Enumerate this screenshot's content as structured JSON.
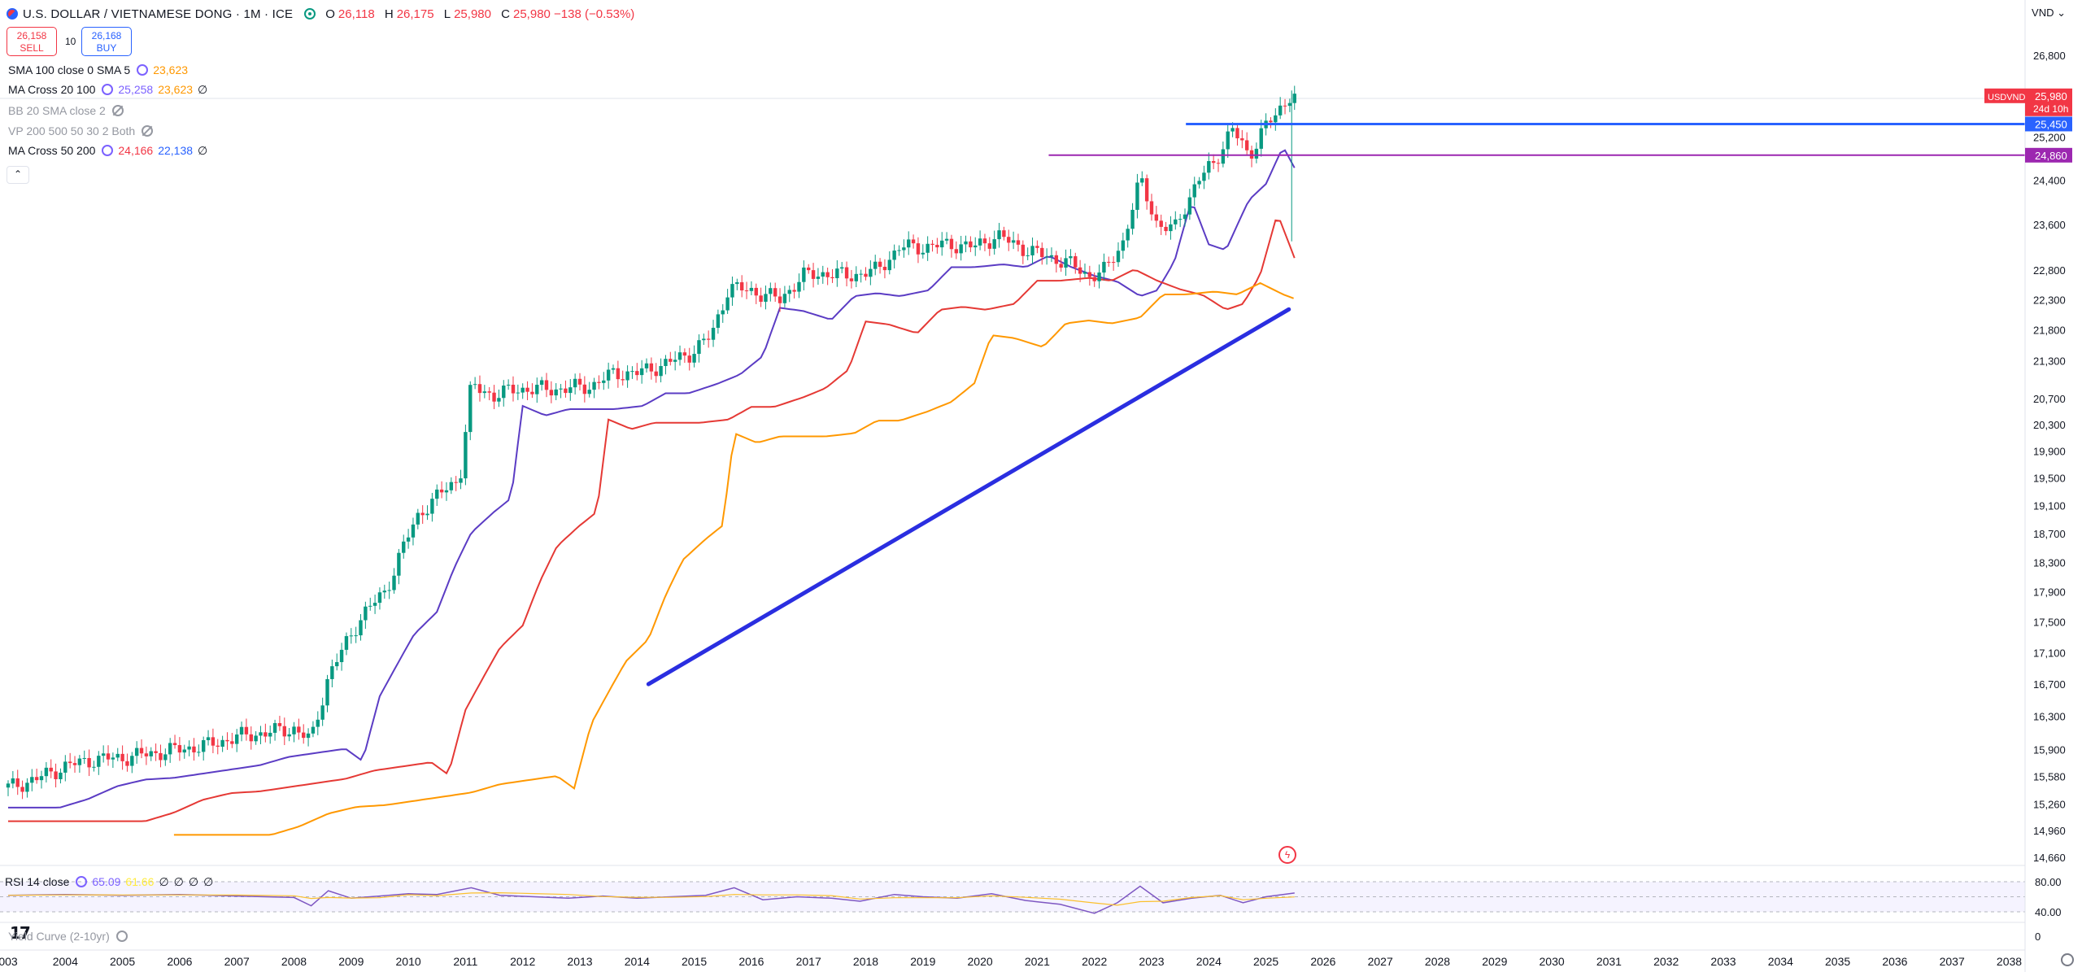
{
  "header": {
    "title": "U.S. DOLLAR / VIETNAMESE DONG · 1M · ICE",
    "ohlc": [
      {
        "label": "O",
        "value": "26,118"
      },
      {
        "label": "H",
        "value": "26,175"
      },
      {
        "label": "L",
        "value": "25,980"
      },
      {
        "label": "C",
        "value": "25,980 −138 (−0.53%)"
      }
    ],
    "currency": "VND ⌄"
  },
  "trade": {
    "sell_price": "26,158",
    "sell_label": "SELL",
    "spread": "10",
    "buy_price": "26,168",
    "buy_label": "BUY"
  },
  "indicators": [
    {
      "name": "SMA 100 close 0 SMA 5",
      "values": [
        "23,623"
      ],
      "colors": [
        "#ff9800"
      ],
      "visible": true
    },
    {
      "name": "MA Cross 20 100",
      "values": [
        "25,258",
        "23,623",
        "∅"
      ],
      "colors": [
        "#7b61ff",
        "#ff9800",
        "#131722"
      ],
      "visible": true
    },
    {
      "name": "BB 20 SMA close 2",
      "values": [],
      "colors": [],
      "visible": false
    },
    {
      "name": "VP 200 500 50 30 2 Both",
      "values": [],
      "colors": [],
      "visible": false
    },
    {
      "name": "MA Cross 50 200",
      "values": [
        "24,166",
        "22,138",
        "∅"
      ],
      "colors": [
        "#f23645",
        "#2962ff",
        "#131722"
      ],
      "visible": true
    }
  ],
  "collapse_label": "⌃",
  "rsi": {
    "name": "RSI 14 close",
    "values": [
      "65.09",
      "61.66",
      "∅",
      "∅",
      "∅",
      "∅"
    ],
    "ticks": [
      "80.00",
      "40.00"
    ]
  },
  "yield_curve": {
    "name": "Yield Curve (2-10yr)",
    "tick": "0"
  },
  "logo_text": "17",
  "chart_data": {
    "type": "candlestick",
    "symbol": "USDVND",
    "timeframe": "1M",
    "price_axis": {
      "ticks": [
        "26,800",
        "26,000",
        "25,200",
        "24,400",
        "23,600",
        "22,800",
        "22,300",
        "21,800",
        "21,300",
        "20,700",
        "20,300",
        "19,900",
        "19,500",
        "19,100",
        "18,700",
        "18,300",
        "17,900",
        "17,500",
        "17,100",
        "16,700",
        "16,300",
        "15,900",
        "15,580",
        "15,260",
        "14,960",
        "14,660"
      ],
      "scale": "log"
    },
    "time_axis": {
      "labels": [
        "003",
        "2004",
        "2005",
        "2006",
        "2007",
        "2008",
        "2009",
        "2010",
        "2011",
        "2012",
        "2013",
        "2014",
        "2015",
        "2016",
        "2017",
        "2018",
        "2019",
        "2020",
        "2021",
        "2022",
        "2023",
        "2024",
        "2025",
        "2026",
        "2027",
        "2028",
        "2029",
        "2030",
        "2031",
        "2032",
        "2033",
        "2034",
        "2035",
        "2036",
        "2037",
        "2038"
      ]
    },
    "price_labels": [
      {
        "text": "USDVND",
        "value": "25,980",
        "extra": "24d 10h",
        "color": "#f23645"
      },
      {
        "text": "",
        "value": "25,450",
        "color": "#2962ff"
      },
      {
        "text": "",
        "value": "24,860",
        "color": "#9c27b0"
      }
    ],
    "horizontal_lines": [
      {
        "price": 25450,
        "from": 2023.6,
        "color": "#2962ff"
      },
      {
        "price": 24860,
        "from": 2021.2,
        "color": "#9c27b0"
      }
    ],
    "trend_line": {
      "from": [
        2014.2,
        16700
      ],
      "to": [
        2025.4,
        22138
      ],
      "color": "#2a2ee0"
    },
    "closes": [
      [
        2003.0,
        15450
      ],
      [
        2003.5,
        15550
      ],
      [
        2004.0,
        15700
      ],
      [
        2004.5,
        15780
      ],
      [
        2005.0,
        15800
      ],
      [
        2005.5,
        15850
      ],
      [
        2006.0,
        15900
      ],
      [
        2006.5,
        15950
      ],
      [
        2007.0,
        16050
      ],
      [
        2007.5,
        16100
      ],
      [
        2008.0,
        16150
      ],
      [
        2008.3,
        16000
      ],
      [
        2008.6,
        16800
      ],
      [
        2008.9,
        17200
      ],
      [
        2009.2,
        17600
      ],
      [
        2009.6,
        17900
      ],
      [
        2009.9,
        18500
      ],
      [
        2010.2,
        19000
      ],
      [
        2010.6,
        19300
      ],
      [
        2010.9,
        19500
      ],
      [
        2011.1,
        20900
      ],
      [
        2011.5,
        20750
      ],
      [
        2011.9,
        20850
      ],
      [
        2012.3,
        20850
      ],
      [
        2012.7,
        20850
      ],
      [
        2013.2,
        20900
      ],
      [
        2013.6,
        21100
      ],
      [
        2014.0,
        21100
      ],
      [
        2014.5,
        21250
      ],
      [
        2014.9,
        21400
      ],
      [
        2015.3,
        21700
      ],
      [
        2015.6,
        22500
      ],
      [
        2016.0,
        22450
      ],
      [
        2016.5,
        22300
      ],
      [
        2016.9,
        22700
      ],
      [
        2017.3,
        22750
      ],
      [
        2017.7,
        22700
      ],
      [
        2018.2,
        22800
      ],
      [
        2018.6,
        23200
      ],
      [
        2019.0,
        23200
      ],
      [
        2019.5,
        23250
      ],
      [
        2019.9,
        23200
      ],
      [
        2020.3,
        23400
      ],
      [
        2020.7,
        23200
      ],
      [
        2021.1,
        23050
      ],
      [
        2021.5,
        22950
      ],
      [
        2021.9,
        22700
      ],
      [
        2022.2,
        22800
      ],
      [
        2022.5,
        23300
      ],
      [
        2022.8,
        24400
      ],
      [
        2023.1,
        23600
      ],
      [
        2023.4,
        23500
      ],
      [
        2023.8,
        24400
      ],
      [
        2024.1,
        24700
      ],
      [
        2024.4,
        25400
      ],
      [
        2024.7,
        24800
      ],
      [
        2024.95,
        25400
      ],
      [
        2025.2,
        25600
      ],
      [
        2025.45,
        26100
      ],
      [
        2025.55,
        25980
      ]
    ],
    "rsi_series": [
      [
        2003.0,
        62
      ],
      [
        2004.0,
        63
      ],
      [
        2005.0,
        62
      ],
      [
        2006.0,
        63
      ],
      [
        2007.0,
        61
      ],
      [
        2008.0,
        59
      ],
      [
        2008.3,
        48
      ],
      [
        2008.6,
        68
      ],
      [
        2009.0,
        58
      ],
      [
        2009.5,
        61
      ],
      [
        2010.0,
        64
      ],
      [
        2010.5,
        63
      ],
      [
        2011.1,
        72
      ],
      [
        2011.6,
        62
      ],
      [
        2012.2,
        60
      ],
      [
        2012.8,
        58
      ],
      [
        2013.4,
        61
      ],
      [
        2014.0,
        58
      ],
      [
        2014.6,
        60
      ],
      [
        2015.2,
        62
      ],
      [
        2015.7,
        72
      ],
      [
        2016.2,
        56
      ],
      [
        2016.8,
        60
      ],
      [
        2017.4,
        58
      ],
      [
        2017.9,
        54
      ],
      [
        2018.5,
        63
      ],
      [
        2019.0,
        60
      ],
      [
        2019.6,
        58
      ],
      [
        2020.2,
        64
      ],
      [
        2020.8,
        55
      ],
      [
        2021.4,
        50
      ],
      [
        2022.0,
        38
      ],
      [
        2022.4,
        52
      ],
      [
        2022.8,
        74
      ],
      [
        2023.2,
        52
      ],
      [
        2023.7,
        58
      ],
      [
        2024.2,
        62
      ],
      [
        2024.6,
        52
      ],
      [
        2025.0,
        60
      ],
      [
        2025.5,
        65
      ]
    ]
  }
}
